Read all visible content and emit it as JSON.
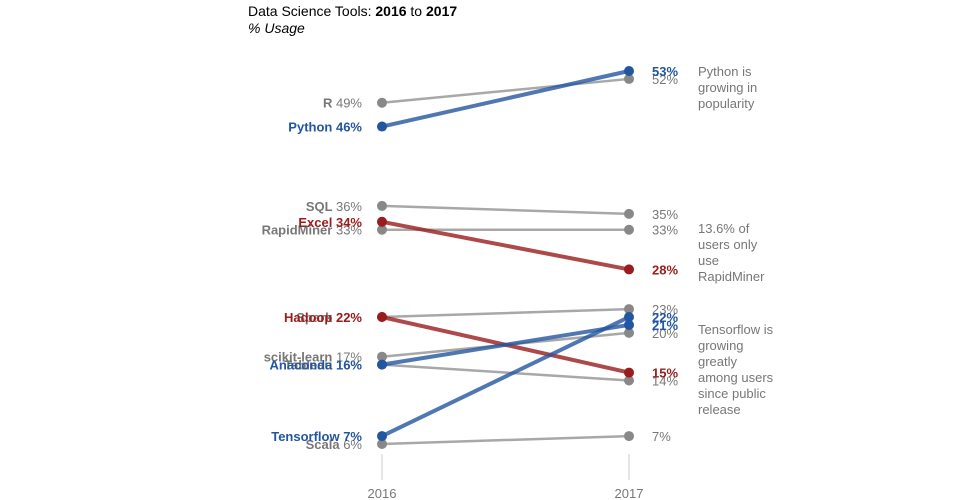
{
  "title": {
    "prefix": "Data Science Tools: ",
    "from": "2016",
    "to_word": " to ",
    "to": "2017",
    "subtitle": "% Usage"
  },
  "colors": {
    "neutral": "#999999",
    "neutral_dot": "#888888",
    "blue": "#2356a0",
    "red": "#9a1c1c"
  },
  "chart_data": {
    "type": "line",
    "x": [
      "2016",
      "2017"
    ],
    "ylabel": "% Usage",
    "ylim": [
      6,
      53
    ],
    "series": [
      {
        "name": "R",
        "values": [
          49,
          52
        ],
        "label_2016": "49%",
        "label_2017": "52%",
        "highlight": "none"
      },
      {
        "name": "SQL",
        "values": [
          36,
          35
        ],
        "label_2016": "36%",
        "label_2017": "35%",
        "highlight": "none"
      },
      {
        "name": "RapidMiner",
        "values": [
          33,
          33
        ],
        "label_2016": "33%",
        "label_2017": "33%",
        "highlight": "none"
      },
      {
        "name": "Spark",
        "values": [
          22,
          23
        ],
        "label_2016": "22%",
        "label_2017": "23%",
        "highlight": "none"
      },
      {
        "name": "scikit-learn",
        "values": [
          17,
          20
        ],
        "label_2016": "17%",
        "label_2017": "20%",
        "highlight": "none"
      },
      {
        "name": "Tableau",
        "values": [
          16,
          14
        ],
        "label_2016": "16%",
        "label_2017": "14%",
        "highlight": "none"
      },
      {
        "name": "Scala",
        "values": [
          6,
          7
        ],
        "label_2016": "6%",
        "label_2017": "7%",
        "highlight": "none"
      },
      {
        "name": "Excel",
        "values": [
          34,
          28
        ],
        "label_2016": "34%",
        "label_2017": "28%",
        "highlight": "red"
      },
      {
        "name": "Hadoop",
        "values": [
          22,
          15
        ],
        "label_2016": "22%",
        "label_2017": "15%",
        "highlight": "red"
      },
      {
        "name": "Python",
        "values": [
          46,
          53
        ],
        "label_2016": "46%",
        "label_2017": "53%",
        "highlight": "blue"
      },
      {
        "name": "Anaconda",
        "values": [
          16,
          21
        ],
        "label_2016": "16%",
        "label_2017": "21%",
        "highlight": "blue"
      },
      {
        "name": "Tensorflow",
        "values": [
          7,
          22
        ],
        "label_2016": "7%",
        "label_2017": "22%",
        "highlight": "blue"
      }
    ],
    "annotations": [
      {
        "series": "Python",
        "lines": [
          "Python is",
          "growing in",
          "popularity"
        ]
      },
      {
        "series": "RapidMiner",
        "lines": [
          "13.6% of",
          "users only",
          "use",
          "RapidMiner"
        ]
      },
      {
        "series": "Tensorflow",
        "lines": [
          "Tensorflow is",
          "growing",
          "greatly",
          "among users",
          "since public",
          "release"
        ]
      }
    ]
  }
}
